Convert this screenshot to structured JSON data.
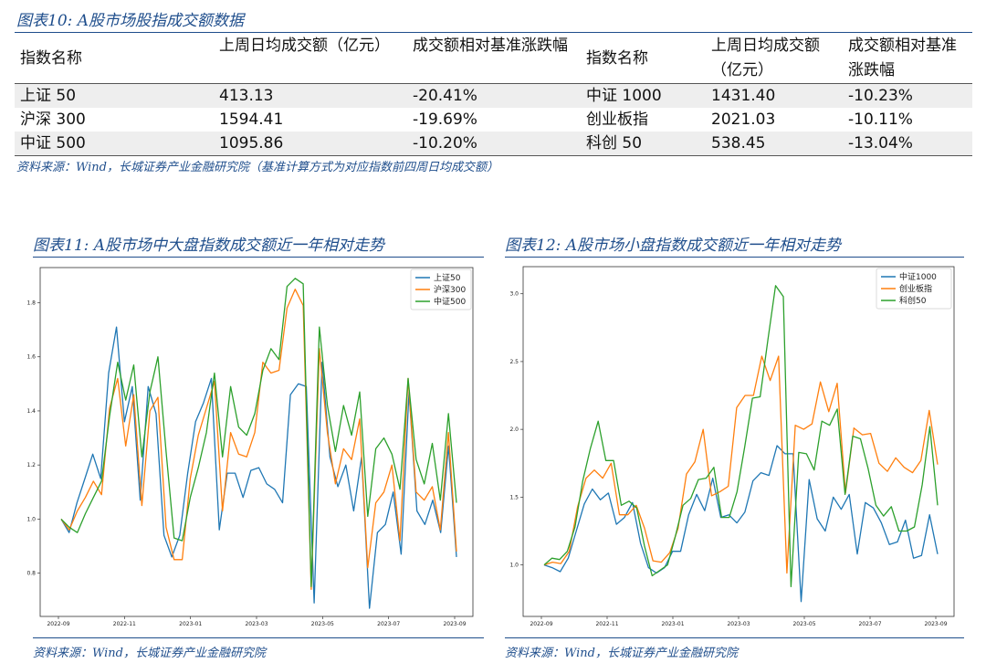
{
  "table_section": {
    "caption_prefix": "图表10:",
    "caption_text": "A股市场股指成交额数据",
    "headers": [
      "指数名称",
      "上周日均成交额（亿元）",
      "成交额相对基准涨跌幅",
      "指数名称",
      "上周日均成交额（亿元）",
      "成交额相对基准涨跌幅"
    ],
    "rows": [
      [
        "上证 50",
        "413.13",
        "-20.41%",
        "中证 1000",
        "1431.40",
        "-10.23%"
      ],
      [
        "沪深 300",
        "1594.41",
        "-19.69%",
        "创业板指",
        "2021.03",
        "-10.11%"
      ],
      [
        "中证 500",
        "1095.86",
        "-10.20%",
        "科创 50",
        "538.45",
        "-13.04%"
      ]
    ],
    "source": "资料来源：Wind，长城证券产业金融研究院（基准计算方式为对应指数前四周日均成交额）"
  },
  "chart11": {
    "caption_prefix": "图表11:",
    "caption_text": "A股市场中大盘指数成交额近一年相对走势",
    "source": "资料来源：Wind，长城证券产业金融研究院"
  },
  "chart12": {
    "caption_prefix": "图表12:",
    "caption_text": "A股市场小盘指数成交额近一年相对走势",
    "source": "资料来源：Wind，长城证券产业金融研究院"
  },
  "chart_data": [
    {
      "type": "line",
      "title": "",
      "x_tick_labels": [
        "2022-09",
        "2022-11",
        "2023-01",
        "2023-03",
        "2023-05",
        "2023-07",
        "2023-09"
      ],
      "y_ticks": [
        0.8,
        1.0,
        1.2,
        1.4,
        1.6,
        1.8
      ],
      "ylim": [
        0.64,
        1.93
      ],
      "legend_position": "top-right",
      "grid": false,
      "series": [
        {
          "name": "上证50",
          "color": "#1f77b4",
          "values": [
            1.0,
            0.95,
            1.06,
            1.15,
            1.24,
            1.15,
            1.54,
            1.71,
            1.36,
            1.49,
            1.07,
            1.49,
            1.39,
            0.94,
            0.86,
            0.94,
            1.17,
            1.36,
            1.43,
            1.52,
            0.96,
            1.17,
            1.17,
            1.08,
            1.18,
            1.19,
            1.13,
            1.11,
            1.06,
            1.46,
            1.5,
            1.49,
            0.69,
            1.58,
            1.23,
            1.12,
            1.2,
            1.03,
            1.23,
            0.67,
            0.95,
            0.98,
            1.1,
            0.87,
            1.47,
            1.03,
            0.98,
            1.07,
            0.95,
            1.27,
            0.86
          ]
        },
        {
          "name": "沪深300",
          "color": "#ff7f0e",
          "values": [
            1.0,
            0.96,
            1.03,
            1.08,
            1.14,
            1.09,
            1.41,
            1.52,
            1.27,
            1.46,
            1.05,
            1.4,
            1.45,
            0.97,
            0.85,
            0.85,
            1.15,
            1.31,
            1.41,
            1.51,
            1.03,
            1.32,
            1.24,
            1.23,
            1.32,
            1.58,
            1.54,
            1.55,
            1.78,
            1.85,
            1.79,
            0.74,
            1.63,
            1.32,
            1.13,
            1.26,
            1.22,
            1.37,
            0.82,
            1.06,
            1.1,
            1.2,
            0.92,
            1.52,
            1.1,
            1.07,
            1.12,
            0.96,
            1.32,
            0.88
          ]
        },
        {
          "name": "中证500",
          "color": "#2ca02c",
          "values": [
            1.0,
            0.97,
            0.95,
            1.02,
            1.08,
            1.14,
            1.38,
            1.58,
            1.44,
            1.57,
            1.23,
            1.47,
            1.6,
            1.25,
            0.93,
            0.92,
            1.08,
            1.19,
            1.32,
            1.54,
            1.23,
            1.49,
            1.34,
            1.31,
            1.39,
            1.55,
            1.63,
            1.59,
            1.86,
            1.89,
            1.87,
            0.75,
            1.71,
            1.42,
            1.25,
            1.42,
            1.31,
            1.47,
            1.01,
            1.26,
            1.3,
            1.24,
            1.11,
            1.52,
            1.22,
            1.13,
            1.28,
            1.07,
            1.39,
            1.06
          ]
        }
      ]
    },
    {
      "type": "line",
      "title": "",
      "x_tick_labels": [
        "2022-09",
        "2022-11",
        "2023-01",
        "2023-03",
        "2023-05",
        "2023-07",
        "2023-09"
      ],
      "y_ticks": [
        1.0,
        1.5,
        2.0,
        2.5,
        3.0
      ],
      "ylim": [
        0.62,
        3.2
      ],
      "legend_position": "top-left",
      "grid": false,
      "series": [
        {
          "name": "中证1000",
          "color": "#1f77b4",
          "values": [
            1.0,
            0.98,
            0.95,
            1.05,
            1.25,
            1.45,
            1.56,
            1.48,
            1.53,
            1.3,
            1.35,
            1.46,
            1.16,
            0.98,
            0.94,
            0.98,
            1.1,
            1.1,
            1.37,
            1.52,
            1.4,
            1.64,
            1.35,
            1.37,
            1.31,
            1.39,
            1.62,
            1.68,
            1.66,
            1.88,
            1.82,
            1.82,
            0.73,
            1.63,
            1.34,
            1.25,
            1.5,
            1.41,
            1.52,
            1.08,
            1.46,
            1.42,
            1.31,
            1.15,
            1.17,
            1.33,
            1.05,
            1.07,
            1.37,
            1.08
          ]
        },
        {
          "name": "创业板指",
          "color": "#ff7f0e",
          "values": [
            1.0,
            1.02,
            1.01,
            1.1,
            1.43,
            1.64,
            1.7,
            1.64,
            1.75,
            1.37,
            1.37,
            1.44,
            1.27,
            1.03,
            1.02,
            1.09,
            1.27,
            1.67,
            1.76,
            2.0,
            1.51,
            1.54,
            1.58,
            2.16,
            2.25,
            2.25,
            2.54,
            2.36,
            2.54,
            0.94,
            2.03,
            2.0,
            2.04,
            2.35,
            2.13,
            2.34,
            1.53,
            2.01,
            1.96,
            1.97,
            1.75,
            1.69,
            1.79,
            1.72,
            1.68,
            1.77,
            2.14,
            1.74
          ]
        },
        {
          "name": "科创50",
          "color": "#2ca02c",
          "values": [
            1.0,
            1.05,
            1.04,
            1.1,
            1.28,
            1.62,
            1.86,
            2.06,
            1.77,
            1.77,
            1.44,
            1.47,
            1.42,
            1.14,
            0.92,
            0.96,
            1.0,
            1.21,
            1.44,
            1.49,
            1.63,
            1.64,
            1.72,
            1.35,
            1.35,
            1.54,
            1.87,
            2.23,
            2.24,
            2.66,
            3.06,
            2.98,
            0.84,
            1.83,
            1.82,
            1.7,
            2.06,
            2.03,
            2.15,
            1.52,
            1.95,
            1.93,
            1.71,
            1.44,
            1.36,
            1.43,
            1.25,
            1.25,
            1.28,
            1.59,
            2.02,
            1.44
          ]
        }
      ]
    }
  ]
}
